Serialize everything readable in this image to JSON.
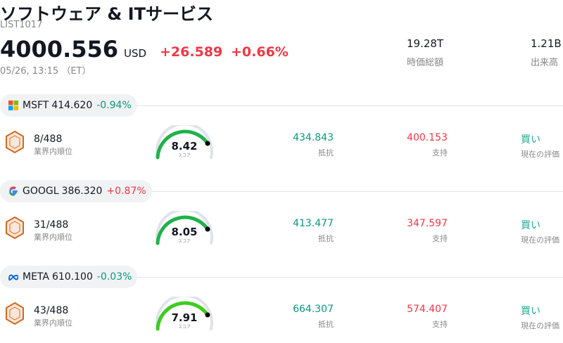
{
  "header": {
    "title": "ソフトウェア & ITサービス",
    "code": "LIST1017",
    "price": "4000.556",
    "currency": "USD",
    "change": "+26.589",
    "change_pct": "+0.66%",
    "datetime": "05/26, 13:15 （ET）"
  },
  "stats": [
    {
      "value": "19.28T",
      "label": "時価総額"
    },
    {
      "value": "1.21B",
      "label": "出来高"
    }
  ],
  "stocks": [
    {
      "ticker": "MSFT",
      "price": "414.620",
      "change": "-0.94%",
      "rank": "8/488",
      "rank_label": "業界内順位",
      "score": "8.42",
      "score_label": "スコア",
      "resistance": "434.843",
      "resistance_label": "抵抗",
      "support": "400.153",
      "support_label": "支持",
      "rating": "買い",
      "rating_label": "現在の評価"
    },
    {
      "ticker": "GOOGL",
      "price": "386.320",
      "change": "+0.87%",
      "rank": "31/488",
      "rank_label": "業界内順位",
      "score": "8.05",
      "score_label": "スコア",
      "resistance": "413.477",
      "resistance_label": "抵抗",
      "support": "347.597",
      "support_label": "支持",
      "rating": "買い",
      "rating_label": "現在の評価"
    },
    {
      "ticker": "META",
      "price": "610.100",
      "change": "-0.03%",
      "rank": "43/488",
      "rank_label": "業界内順位",
      "score": "7.91",
      "score_label": "スコア",
      "resistance": "664.307",
      "resistance_label": "抵抗",
      "support": "574.407",
      "support_label": "支持",
      "rating": "買い",
      "rating_label": "現在の評価"
    }
  ]
}
